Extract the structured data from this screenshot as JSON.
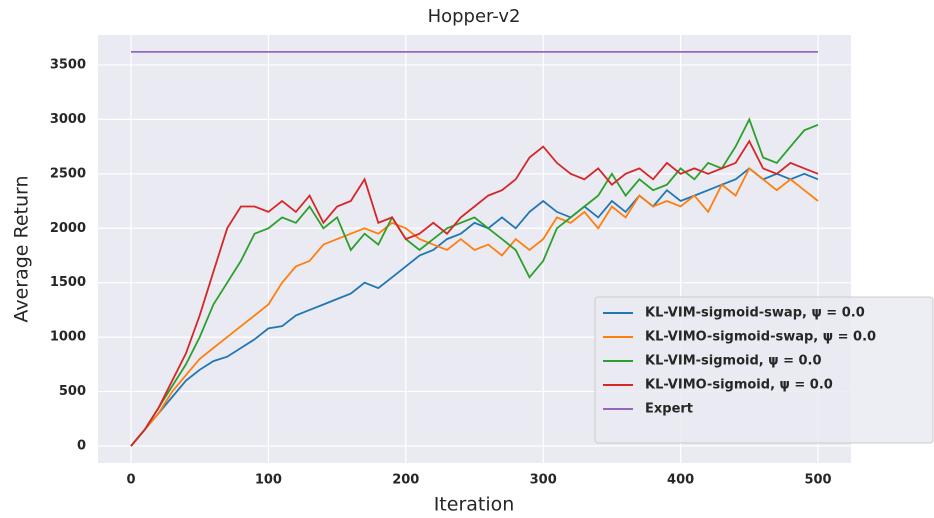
{
  "chart_data": {
    "type": "line",
    "title": "Hopper-v2",
    "xlabel": "Iteration",
    "ylabel": "Average Return",
    "x": [
      0,
      10,
      20,
      30,
      40,
      50,
      60,
      70,
      80,
      90,
      100,
      110,
      120,
      130,
      140,
      150,
      160,
      170,
      180,
      190,
      200,
      210,
      220,
      230,
      240,
      250,
      260,
      270,
      280,
      290,
      300,
      310,
      320,
      330,
      340,
      350,
      360,
      370,
      380,
      390,
      400,
      410,
      420,
      430,
      440,
      450,
      460,
      470,
      480,
      490,
      500
    ],
    "series": [
      {
        "name": "KL-VIM-sigmoid-swap, ψ = 0.0",
        "color": "#1f77b4",
        "values": [
          0,
          150,
          300,
          450,
          600,
          700,
          780,
          820,
          900,
          980,
          1080,
          1100,
          1200,
          1250,
          1300,
          1350,
          1400,
          1500,
          1450,
          1550,
          1650,
          1750,
          1800,
          1900,
          1950,
          2050,
          2000,
          2100,
          2000,
          2150,
          2250,
          2150,
          2100,
          2200,
          2100,
          2250,
          2150,
          2300,
          2200,
          2350,
          2250,
          2300,
          2350,
          2400,
          2450,
          2550,
          2450,
          2500,
          2450,
          2500,
          2450
        ]
      },
      {
        "name": "KL-VIMO-sigmoid-swap, ψ = 0.0",
        "color": "#ff7f0e",
        "values": [
          0,
          150,
          300,
          500,
          650,
          800,
          900,
          1000,
          1100,
          1200,
          1300,
          1500,
          1650,
          1700,
          1850,
          1900,
          1950,
          2000,
          1950,
          2050,
          2000,
          1900,
          1850,
          1800,
          1900,
          1800,
          1850,
          1750,
          1900,
          1800,
          1900,
          2100,
          2050,
          2150,
          2000,
          2200,
          2100,
          2300,
          2200,
          2250,
          2200,
          2300,
          2150,
          2400,
          2300,
          2550,
          2450,
          2350,
          2450,
          2350,
          2250
        ]
      },
      {
        "name": "KL-VIM-sigmoid, ψ = 0.0",
        "color": "#2ca02c",
        "values": [
          0,
          150,
          350,
          550,
          750,
          1000,
          1300,
          1500,
          1700,
          1950,
          2000,
          2100,
          2050,
          2200,
          2000,
          2100,
          1800,
          1950,
          1850,
          2100,
          1900,
          1800,
          1900,
          2000,
          2050,
          2100,
          2000,
          1900,
          1800,
          1550,
          1700,
          2000,
          2100,
          2200,
          2300,
          2500,
          2300,
          2450,
          2350,
          2400,
          2550,
          2450,
          2600,
          2550,
          2750,
          3000,
          2650,
          2600,
          2750,
          2900,
          2950
        ]
      },
      {
        "name": "KL-VIMO-sigmoid, ψ = 0.0",
        "color": "#d62728",
        "values": [
          0,
          150,
          350,
          600,
          850,
          1200,
          1600,
          2000,
          2200,
          2200,
          2150,
          2250,
          2150,
          2300,
          2050,
          2200,
          2250,
          2450,
          2050,
          2100,
          1900,
          1950,
          2050,
          1950,
          2100,
          2200,
          2300,
          2350,
          2450,
          2650,
          2750,
          2600,
          2500,
          2450,
          2550,
          2400,
          2500,
          2550,
          2450,
          2600,
          2500,
          2550,
          2500,
          2550,
          2600,
          2800,
          2550,
          2500,
          2600,
          2550,
          2500
        ]
      },
      {
        "name": "Expert",
        "color": "#9467bd",
        "x": [
          0,
          500
        ],
        "values": [
          3620,
          3620
        ]
      }
    ],
    "xlim": [
      -24,
      524
    ],
    "xticks": [
      0,
      100,
      200,
      300,
      400,
      500
    ],
    "ylim": [
      -156,
      3775
    ],
    "yticks": [
      0,
      500,
      1000,
      1500,
      2000,
      2500,
      3000,
      3500
    ],
    "grid": true,
    "legend": "lower right"
  }
}
